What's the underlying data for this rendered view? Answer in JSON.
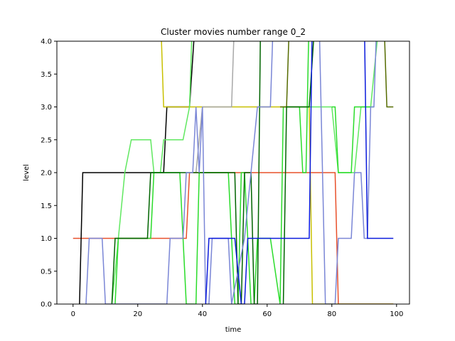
{
  "chart_data": {
    "type": "line",
    "title": "Cluster movies number range 0_2",
    "xlabel": "time",
    "ylabel": "level",
    "xlim": [
      -5,
      104
    ],
    "ylim": [
      0,
      4
    ],
    "xticks": [
      0,
      20,
      40,
      60,
      80,
      100
    ],
    "yticks": [
      0.0,
      0.5,
      1.0,
      1.5,
      2.0,
      2.5,
      3.0,
      3.5,
      4.0
    ],
    "xtick_labels": [
      "0",
      "20",
      "40",
      "60",
      "80",
      "100"
    ],
    "ytick_labels": [
      "0.0",
      "0.5",
      "1.0",
      "1.5",
      "2.0",
      "2.5",
      "3.0",
      "3.5",
      "4.0"
    ],
    "grid": false,
    "series": [
      {
        "color": "#e8502a",
        "points": [
          [
            0,
            1
          ],
          [
            35,
            1
          ],
          [
            36,
            2
          ],
          [
            38,
            2
          ],
          [
            51,
            2
          ],
          [
            52,
            2
          ],
          [
            81,
            2
          ],
          [
            82,
            0
          ],
          [
            99,
            0
          ]
        ]
      },
      {
        "color": "#000000",
        "points": [
          [
            2,
            0
          ],
          [
            3,
            2
          ],
          [
            28,
            2
          ],
          [
            29,
            3
          ],
          [
            36,
            3
          ],
          [
            38,
            4.5
          ]
        ]
      },
      {
        "color": "#c8c000",
        "points": [
          [
            27,
            4.5
          ],
          [
            28,
            3
          ],
          [
            70,
            3
          ],
          [
            73,
            3
          ],
          [
            74,
            0
          ],
          [
            99,
            0
          ]
        ]
      },
      {
        "color": "#a8a8a8",
        "points": [
          [
            38,
            2
          ],
          [
            40,
            3
          ],
          [
            45,
            3
          ],
          [
            49,
            3
          ],
          [
            50,
            4.5
          ]
        ]
      },
      {
        "color": "#60e860",
        "points": [
          [
            12,
            0
          ],
          [
            16,
            2
          ],
          [
            18,
            2.5
          ],
          [
            24,
            2.5
          ],
          [
            25,
            2
          ],
          [
            27,
            2
          ],
          [
            28,
            2.5
          ],
          [
            34,
            2.5
          ],
          [
            36,
            3
          ],
          [
            37,
            4.5
          ]
        ]
      },
      {
        "color": "#60e860",
        "points": [
          [
            70,
            3
          ],
          [
            80,
            3
          ],
          [
            82,
            2
          ],
          [
            87,
            2
          ],
          [
            89,
            3
          ],
          [
            92,
            3
          ],
          [
            95,
            4.5
          ]
        ]
      },
      {
        "color": "#2adc2a",
        "points": [
          [
            13,
            0
          ],
          [
            14,
            1
          ],
          [
            24,
            1
          ],
          [
            25,
            2
          ],
          [
            33,
            2
          ],
          [
            35,
            0
          ],
          [
            38,
            0
          ],
          [
            39,
            2
          ],
          [
            48,
            2
          ],
          [
            50,
            0
          ],
          [
            51,
            0
          ],
          [
            52,
            2
          ],
          [
            53,
            2
          ],
          [
            55,
            0
          ],
          [
            56,
            0
          ],
          [
            57,
            1
          ],
          [
            60,
            1
          ],
          [
            61,
            1
          ],
          [
            64,
            0
          ],
          [
            65,
            3
          ],
          [
            70,
            3
          ],
          [
            71,
            2
          ],
          [
            72,
            2
          ],
          [
            73,
            4.5
          ]
        ]
      },
      {
        "color": "#2adc2a",
        "points": [
          [
            80,
            3
          ],
          [
            81,
            3
          ],
          [
            82,
            2
          ],
          [
            86,
            2
          ],
          [
            87,
            3
          ],
          [
            92,
            3
          ],
          [
            93,
            3
          ]
        ]
      },
      {
        "color": "#006400",
        "points": [
          [
            12,
            0
          ],
          [
            13,
            1
          ],
          [
            23,
            1
          ],
          [
            24,
            2
          ],
          [
            36,
            2
          ],
          [
            50,
            2
          ],
          [
            51,
            0
          ],
          [
            52,
            0
          ],
          [
            53,
            2
          ],
          [
            55,
            2
          ],
          [
            56,
            0
          ],
          [
            57,
            0
          ],
          [
            58,
            4.5
          ]
        ]
      },
      {
        "color": "#556b00",
        "points": [
          [
            64,
            3
          ],
          [
            66,
            3
          ],
          [
            67,
            4.5
          ]
        ]
      },
      {
        "color": "#006400",
        "points": [
          [
            65,
            0
          ],
          [
            66,
            3
          ],
          [
            73,
            3
          ],
          [
            75,
            4.5
          ]
        ]
      },
      {
        "color": "#556b00",
        "points": [
          [
            96,
            4.5
          ],
          [
            97,
            3
          ],
          [
            99,
            3
          ]
        ]
      },
      {
        "color": "#7a86d6",
        "points": [
          [
            4,
            0
          ],
          [
            5,
            1
          ],
          [
            9,
            1
          ],
          [
            10,
            0
          ],
          [
            29,
            0
          ],
          [
            30,
            1
          ],
          [
            34,
            1
          ],
          [
            35,
            2
          ],
          [
            37,
            2
          ],
          [
            38,
            3
          ],
          [
            39,
            2
          ],
          [
            40,
            3
          ],
          [
            41,
            0
          ],
          [
            42,
            0
          ],
          [
            43,
            1
          ],
          [
            48,
            1
          ],
          [
            49,
            0
          ],
          [
            53,
            1
          ],
          [
            55,
            2
          ],
          [
            57,
            3
          ],
          [
            61,
            3
          ],
          [
            62,
            4.5
          ]
        ]
      },
      {
        "color": "#7a86d6",
        "points": [
          [
            76,
            4.5
          ],
          [
            78,
            0
          ],
          [
            81,
            0
          ],
          [
            82,
            1
          ],
          [
            86,
            1
          ],
          [
            87,
            2
          ],
          [
            89,
            2
          ],
          [
            90,
            1
          ],
          [
            91,
            1
          ],
          [
            92,
            3
          ],
          [
            93,
            3
          ],
          [
            94,
            4.5
          ]
        ]
      },
      {
        "color": "#0a1adc",
        "points": [
          [
            41,
            0
          ],
          [
            42,
            1
          ],
          [
            50,
            1
          ],
          [
            52,
            0
          ],
          [
            53,
            0
          ],
          [
            54,
            1
          ],
          [
            72,
            1
          ],
          [
            73,
            1
          ],
          [
            74,
            4.5
          ]
        ]
      },
      {
        "color": "#0a1adc",
        "points": [
          [
            90,
            4.5
          ],
          [
            91,
            1
          ],
          [
            99,
            1
          ]
        ]
      }
    ]
  }
}
